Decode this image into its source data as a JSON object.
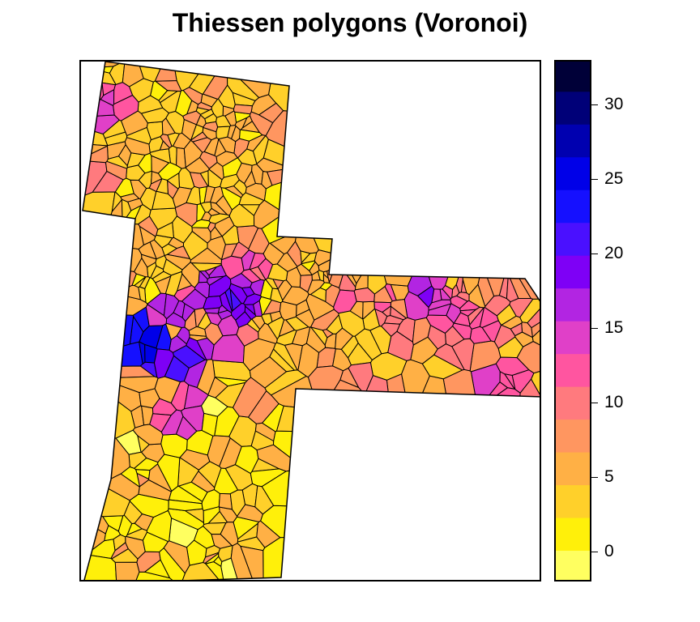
{
  "title": "Thiessen polygons (Voronoi)",
  "legend": {
    "scale_min": -2,
    "scale_max": 33,
    "ticks": [
      {
        "value": 0,
        "label": "0"
      },
      {
        "value": 5,
        "label": "5"
      },
      {
        "value": 10,
        "label": "10"
      },
      {
        "value": 15,
        "label": "15"
      },
      {
        "value": 20,
        "label": "20"
      },
      {
        "value": 25,
        "label": "25"
      },
      {
        "value": 30,
        "label": "30"
      }
    ],
    "bins": [
      {
        "from": -2,
        "to": 0.2,
        "color": "#FFFF60"
      },
      {
        "from": 0.2,
        "to": 2.4,
        "color": "#FFF00A"
      },
      {
        "from": 2.4,
        "to": 4.6,
        "color": "#FFD02A"
      },
      {
        "from": 4.6,
        "to": 6.8,
        "color": "#FFB045"
      },
      {
        "from": 6.8,
        "to": 9.0,
        "color": "#FF9660"
      },
      {
        "from": 9.0,
        "to": 11.2,
        "color": "#FF7A7E"
      },
      {
        "from": 11.2,
        "to": 13.4,
        "color": "#FF55A0"
      },
      {
        "from": 13.4,
        "to": 15.6,
        "color": "#E040C8"
      },
      {
        "from": 15.6,
        "to": 17.8,
        "color": "#B225E2"
      },
      {
        "from": 17.8,
        "to": 20.0,
        "color": "#7E00F6"
      },
      {
        "from": 20.0,
        "to": 22.2,
        "color": "#4A10FF"
      },
      {
        "from": 22.2,
        "to": 24.4,
        "color": "#1510FF"
      },
      {
        "from": 24.4,
        "to": 26.6,
        "color": "#0000E8"
      },
      {
        "from": 26.6,
        "to": 28.8,
        "color": "#0000B0"
      },
      {
        "from": 28.8,
        "to": 31.0,
        "color": "#000078"
      },
      {
        "from": 31.0,
        "to": 33.0,
        "color": "#000038"
      }
    ]
  },
  "map": {
    "outline_color": "#000000",
    "background": "#ffffff"
  }
}
